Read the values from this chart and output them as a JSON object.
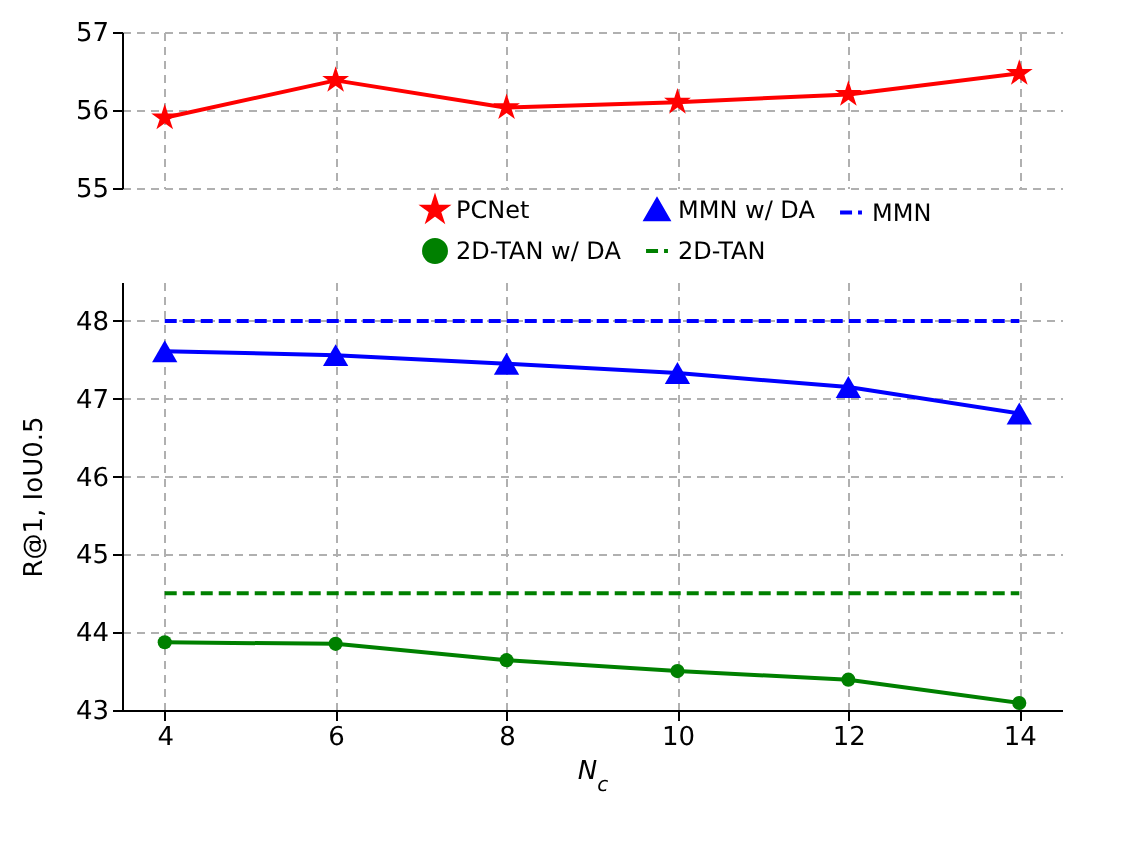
{
  "chart_data": [
    {
      "type": "line",
      "x": [
        4,
        6,
        8,
        10,
        12,
        14
      ],
      "xlim": [
        3.5,
        14.5
      ],
      "xticks": [
        4,
        6,
        8,
        10,
        12,
        14
      ],
      "ylim": [
        55,
        57
      ],
      "yticks": [
        55,
        56,
        57
      ],
      "grid": true,
      "tick_labels": "y",
      "legend": "bottom",
      "series": [
        {
          "name": "PCNet",
          "color": "#ff0000",
          "marker": "star",
          "line_style": "solid",
          "values": [
            55.9,
            56.38,
            56.03,
            56.1,
            56.2,
            56.47
          ]
        }
      ]
    },
    {
      "type": "line",
      "x": [
        4,
        6,
        8,
        10,
        12,
        14
      ],
      "xlim": [
        3.5,
        14.5
      ],
      "xticks": [
        4,
        6,
        8,
        10,
        12,
        14
      ],
      "ylim": [
        43,
        48.5
      ],
      "yticks": [
        43,
        44,
        45,
        46,
        47,
        48
      ],
      "grid": true,
      "legend": "top right",
      "xlabel": "N$_{c}$",
      "ylabel": "R@1, IoU0.5",
      "series": [
        {
          "name": "MMN w/ DA",
          "color": "#0000ff",
          "marker": "triangle",
          "line_style": "solid",
          "values": [
            47.61,
            47.56,
            47.45,
            47.33,
            47.15,
            46.81
          ]
        },
        {
          "name": "MMN",
          "color": "#0000ff",
          "marker": "none",
          "line_style": "dashed",
          "values": [
            48,
            48,
            48,
            48,
            48,
            48
          ]
        },
        {
          "name": "2D-TAN w/ DA",
          "color": "#008000",
          "marker": "circle",
          "line_style": "solid",
          "values": [
            43.87,
            43.85,
            43.64,
            43.5,
            43.39,
            43.09
          ]
        },
        {
          "name": "2D-TAN",
          "color": "#008000",
          "marker": "none",
          "line_style": "dashed",
          "values": [
            44.5,
            44.5,
            44.5,
            44.5,
            44.5,
            44.5
          ]
        }
      ]
    }
  ]
}
